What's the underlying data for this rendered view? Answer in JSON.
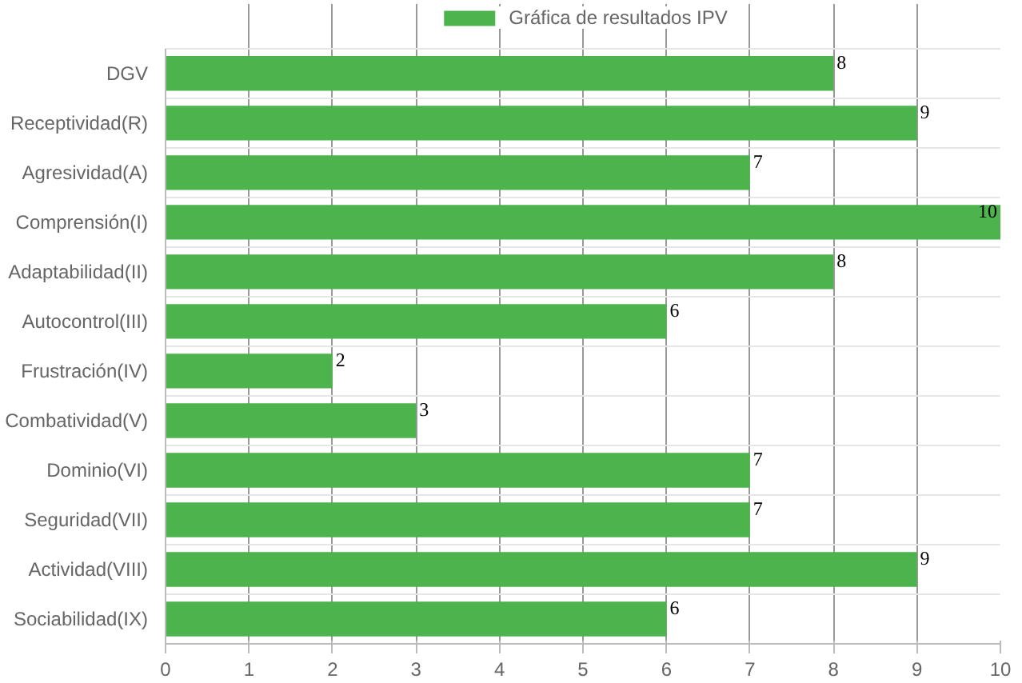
{
  "chart_data": {
    "type": "bar",
    "orientation": "horizontal",
    "categories": [
      "DGV",
      "Receptividad(R)",
      "Agresividad(A)",
      "Comprensión(I)",
      "Adaptabilidad(II)",
      "Autocontrol(III)",
      "Frustración(IV)",
      "Combatividad(V)",
      "Dominio(VI)",
      "Seguridad(VII)",
      "Actividad(VIII)",
      "Sociabilidad(IX)"
    ],
    "series": [
      {
        "name": "Gráfica de resultados IPV",
        "color": "#4db34d",
        "values": [
          8,
          9,
          7,
          10,
          8,
          6,
          2,
          3,
          7,
          7,
          9,
          6
        ]
      }
    ],
    "xlim": [
      0,
      10
    ],
    "xticks": [
      0,
      1,
      2,
      3,
      4,
      5,
      6,
      7,
      8,
      9,
      10
    ],
    "grid": true,
    "legend": "top",
    "data_labels": true
  }
}
